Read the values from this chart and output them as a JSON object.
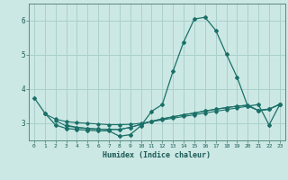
{
  "title": "",
  "xlabel": "Humidex (Indice chaleur)",
  "xlim": [
    -0.5,
    23.5
  ],
  "ylim": [
    2.5,
    6.5
  ],
  "yticks": [
    3,
    4,
    5,
    6
  ],
  "xticks": [
    0,
    1,
    2,
    3,
    4,
    5,
    6,
    7,
    8,
    9,
    10,
    11,
    12,
    13,
    14,
    15,
    16,
    17,
    18,
    19,
    20,
    21,
    22,
    23
  ],
  "background_color": "#cce8e4",
  "grid_color": "#aad0cc",
  "line_color": "#1a7068",
  "lines": [
    {
      "x": [
        0,
        1,
        2,
        3,
        4,
        5,
        6,
        7,
        8,
        9,
        10,
        11,
        12,
        13,
        14,
        15,
        16,
        17,
        18,
        19,
        20,
        21,
        22,
        23
      ],
      "y": [
        3.75,
        3.3,
        2.95,
        2.85,
        2.82,
        2.8,
        2.78,
        2.78,
        2.62,
        2.67,
        2.93,
        3.35,
        3.55,
        4.52,
        5.38,
        6.05,
        6.1,
        5.72,
        5.02,
        4.35,
        3.5,
        3.55,
        2.95,
        3.55
      ]
    },
    {
      "x": [
        1,
        2,
        3,
        4,
        5,
        6,
        7,
        8,
        9,
        10,
        11,
        12,
        13,
        14,
        15,
        16,
        17,
        18,
        19,
        20,
        21,
        22,
        23
      ],
      "y": [
        3.28,
        3.12,
        3.05,
        3.02,
        3.0,
        2.98,
        2.96,
        2.96,
        2.97,
        3.0,
        3.05,
        3.1,
        3.15,
        3.2,
        3.25,
        3.3,
        3.35,
        3.4,
        3.45,
        3.5,
        3.38,
        3.42,
        3.55
      ]
    },
    {
      "x": [
        2,
        3,
        4,
        5,
        6,
        7,
        8,
        9,
        10,
        11,
        12,
        13,
        14,
        15,
        16,
        17,
        18,
        19,
        20,
        21,
        22,
        23
      ],
      "y": [
        3.08,
        2.92,
        2.88,
        2.85,
        2.83,
        2.82,
        2.82,
        2.88,
        2.97,
        3.06,
        3.13,
        3.19,
        3.25,
        3.3,
        3.36,
        3.41,
        3.46,
        3.5,
        3.53,
        3.37,
        3.41,
        3.56
      ]
    },
    {
      "x": [
        3,
        4,
        5,
        6,
        7,
        8,
        9,
        10,
        11,
        12,
        13,
        14,
        15,
        16,
        17,
        18,
        19,
        20,
        21,
        22,
        23
      ],
      "y": [
        2.95,
        2.88,
        2.85,
        2.83,
        2.82,
        2.82,
        2.88,
        2.97,
        3.06,
        3.13,
        3.19,
        3.25,
        3.3,
        3.36,
        3.41,
        3.46,
        3.5,
        3.53,
        3.37,
        3.41,
        3.56
      ]
    }
  ]
}
